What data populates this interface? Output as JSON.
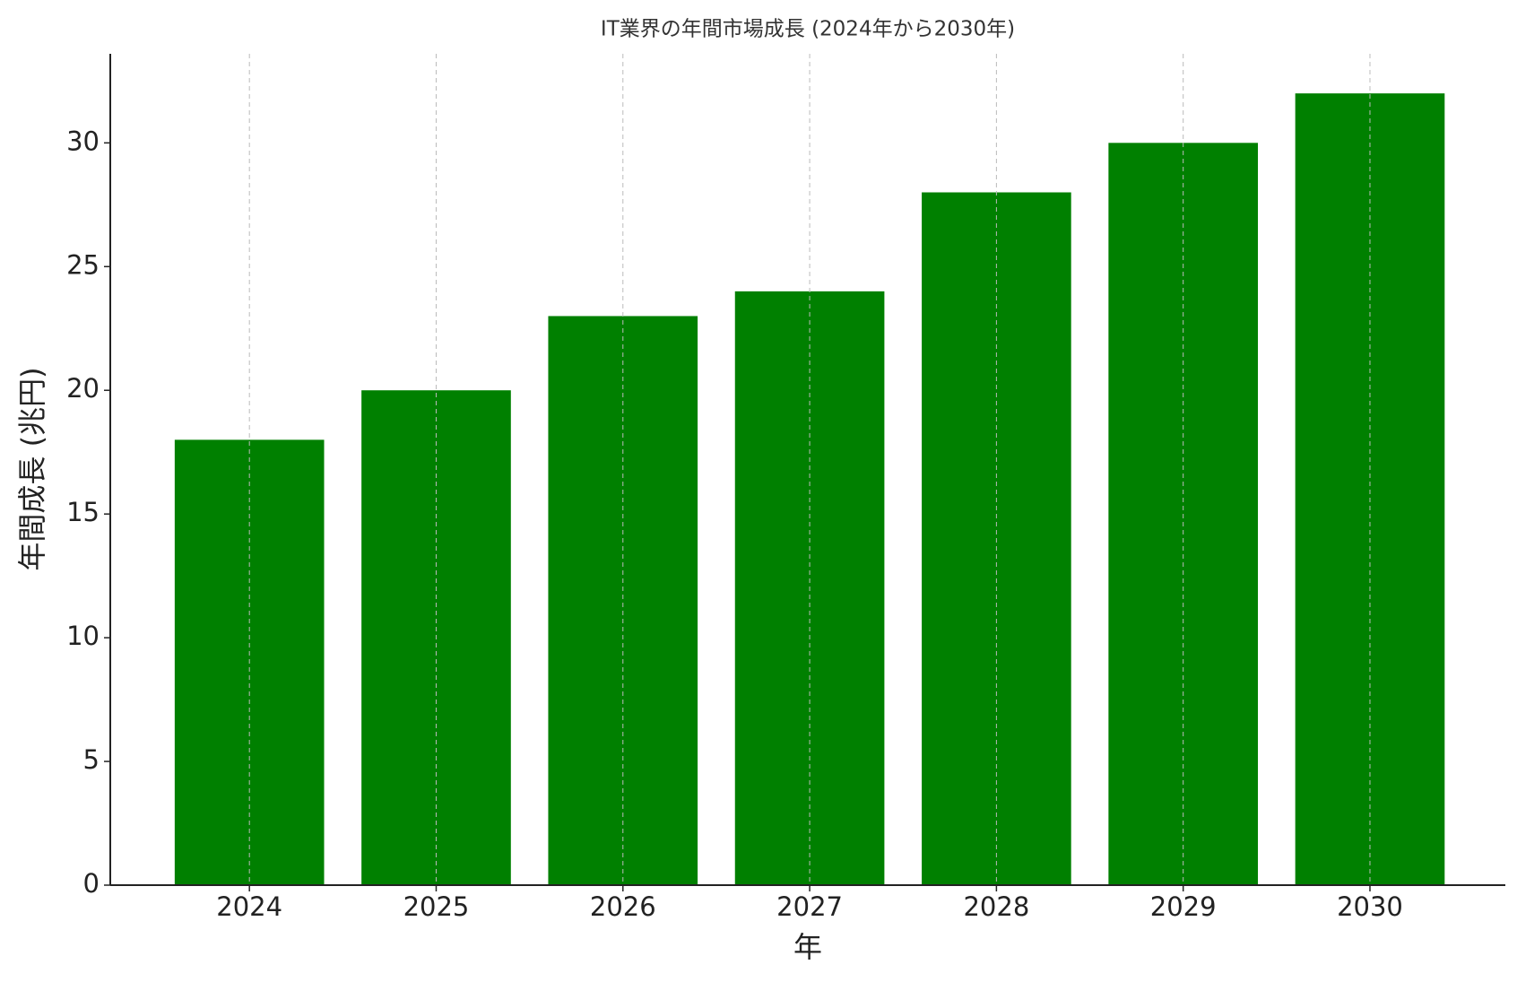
{
  "chart_data": {
    "type": "bar",
    "title": "IT業界の年間市場成長 (2024年から2030年)",
    "x_label": "年",
    "y_label": "年間成長 (兆円)",
    "categories": [
      "2024",
      "2025",
      "2026",
      "2027",
      "2028",
      "2029",
      "2030"
    ],
    "values": [
      18,
      20,
      23,
      24,
      28,
      30,
      32
    ],
    "color": "#008000",
    "ylim": [
      0,
      33.6
    ],
    "yticks": [
      0,
      5,
      10,
      15,
      20,
      25,
      30
    ],
    "grid": "x"
  }
}
